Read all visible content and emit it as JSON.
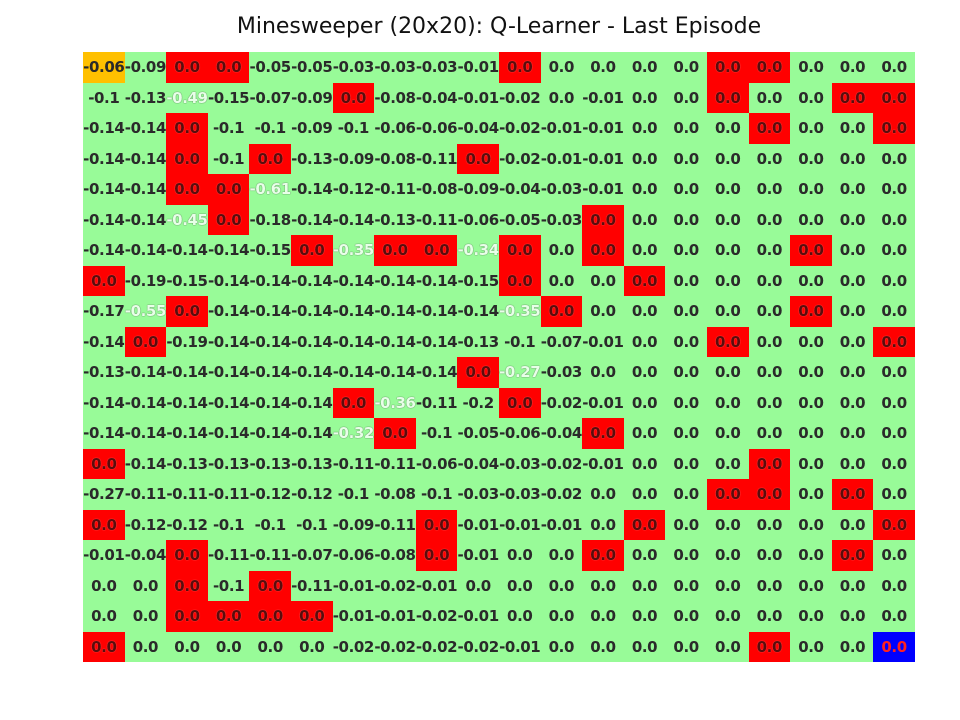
{
  "title": "Minesweeper (20x20): Q-Learner - Last Episode",
  "colors": {
    "safe": "#98fb98",
    "mine": "#ff0000",
    "agent": "#ffc000",
    "goal": "#0000ff"
  },
  "grid": {
    "rows": [
      [
        "-0.06",
        "-0.09",
        "0.0",
        "0.0",
        "-0.05",
        "-0.05",
        "-0.03",
        "-0.03",
        "-0.03",
        "-0.01",
        "0.0",
        "0.0",
        "0.0",
        "0.0",
        "0.0",
        "0.0",
        "0.0",
        "0.0",
        "0.0",
        "0.0"
      ],
      [
        "-0.1",
        "-0.13",
        "-0.49",
        "-0.15",
        "-0.07",
        "-0.09",
        "0.0",
        "-0.08",
        "-0.04",
        "-0.01",
        "-0.02",
        "0.0",
        "-0.01",
        "0.0",
        "0.0",
        "0.0",
        "0.0",
        "0.0",
        "0.0",
        "0.0"
      ],
      [
        "-0.14",
        "-0.14",
        "0.0",
        "-0.1",
        "-0.1",
        "-0.09",
        "-0.1",
        "-0.06",
        "-0.06",
        "-0.04",
        "-0.02",
        "-0.01",
        "-0.01",
        "0.0",
        "0.0",
        "0.0",
        "0.0",
        "0.0",
        "0.0",
        "0.0"
      ],
      [
        "-0.14",
        "-0.14",
        "0.0",
        "-0.1",
        "0.0",
        "-0.13",
        "-0.09",
        "-0.08",
        "-0.11",
        "0.0",
        "-0.02",
        "-0.01",
        "-0.01",
        "0.0",
        "0.0",
        "0.0",
        "0.0",
        "0.0",
        "0.0",
        "0.0"
      ],
      [
        "-0.14",
        "-0.14",
        "0.0",
        "0.0",
        "-0.61",
        "-0.14",
        "-0.12",
        "-0.11",
        "-0.08",
        "-0.09",
        "-0.04",
        "-0.03",
        "-0.01",
        "0.0",
        "0.0",
        "0.0",
        "0.0",
        "0.0",
        "0.0",
        "0.0"
      ],
      [
        "-0.14",
        "-0.14",
        "-0.45",
        "0.0",
        "-0.18",
        "-0.14",
        "-0.14",
        "-0.13",
        "-0.11",
        "-0.06",
        "-0.05",
        "-0.03",
        "0.0",
        "0.0",
        "0.0",
        "0.0",
        "0.0",
        "0.0",
        "0.0",
        "0.0"
      ],
      [
        "-0.14",
        "-0.14",
        "-0.14",
        "-0.14",
        "-0.15",
        "0.0",
        "-0.35",
        "0.0",
        "0.0",
        "-0.34",
        "0.0",
        "0.0",
        "0.0",
        "0.0",
        "0.0",
        "0.0",
        "0.0",
        "0.0",
        "0.0",
        "0.0"
      ],
      [
        "0.0",
        "-0.19",
        "-0.15",
        "-0.14",
        "-0.14",
        "-0.14",
        "-0.14",
        "-0.14",
        "-0.14",
        "-0.15",
        "0.0",
        "0.0",
        "0.0",
        "0.0",
        "0.0",
        "0.0",
        "0.0",
        "0.0",
        "0.0",
        "0.0"
      ],
      [
        "-0.17",
        "-0.55",
        "0.0",
        "-0.14",
        "-0.14",
        "-0.14",
        "-0.14",
        "-0.14",
        "-0.14",
        "-0.14",
        "-0.35",
        "0.0",
        "0.0",
        "0.0",
        "0.0",
        "0.0",
        "0.0",
        "0.0",
        "0.0",
        "0.0"
      ],
      [
        "-0.14",
        "0.0",
        "-0.19",
        "-0.14",
        "-0.14",
        "-0.14",
        "-0.14",
        "-0.14",
        "-0.14",
        "-0.13",
        "-0.1",
        "-0.07",
        "-0.01",
        "0.0",
        "0.0",
        "0.0",
        "0.0",
        "0.0",
        "0.0",
        "0.0"
      ],
      [
        "-0.13",
        "-0.14",
        "-0.14",
        "-0.14",
        "-0.14",
        "-0.14",
        "-0.14",
        "-0.14",
        "-0.14",
        "0.0",
        "-0.27",
        "-0.03",
        "0.0",
        "0.0",
        "0.0",
        "0.0",
        "0.0",
        "0.0",
        "0.0",
        "0.0"
      ],
      [
        "-0.14",
        "-0.14",
        "-0.14",
        "-0.14",
        "-0.14",
        "-0.14",
        "0.0",
        "-0.36",
        "-0.11",
        "-0.2",
        "0.0",
        "-0.02",
        "-0.01",
        "0.0",
        "0.0",
        "0.0",
        "0.0",
        "0.0",
        "0.0",
        "0.0"
      ],
      [
        "-0.14",
        "-0.14",
        "-0.14",
        "-0.14",
        "-0.14",
        "-0.14",
        "-0.32",
        "0.0",
        "-0.1",
        "-0.05",
        "-0.06",
        "-0.04",
        "0.0",
        "0.0",
        "0.0",
        "0.0",
        "0.0",
        "0.0",
        "0.0",
        "0.0"
      ],
      [
        "0.0",
        "-0.14",
        "-0.13",
        "-0.13",
        "-0.13",
        "-0.13",
        "-0.11",
        "-0.11",
        "-0.06",
        "-0.04",
        "-0.03",
        "-0.02",
        "-0.01",
        "0.0",
        "0.0",
        "0.0",
        "0.0",
        "0.0",
        "0.0",
        "0.0"
      ],
      [
        "-0.27",
        "-0.11",
        "-0.11",
        "-0.11",
        "-0.12",
        "-0.12",
        "-0.1",
        "-0.08",
        "-0.1",
        "-0.03",
        "-0.03",
        "-0.02",
        "0.0",
        "0.0",
        "0.0",
        "0.0",
        "0.0",
        "0.0",
        "0.0",
        "0.0"
      ],
      [
        "0.0",
        "-0.12",
        "-0.12",
        "-0.1",
        "-0.1",
        "-0.1",
        "-0.09",
        "-0.11",
        "0.0",
        "-0.01",
        "-0.01",
        "-0.01",
        "0.0",
        "0.0",
        "0.0",
        "0.0",
        "0.0",
        "0.0",
        "0.0",
        "0.0"
      ],
      [
        "-0.01",
        "-0.04",
        "0.0",
        "-0.11",
        "-0.11",
        "-0.07",
        "-0.06",
        "-0.08",
        "0.0",
        "-0.01",
        "0.0",
        "0.0",
        "0.0",
        "0.0",
        "0.0",
        "0.0",
        "0.0",
        "0.0",
        "0.0",
        "0.0"
      ],
      [
        "0.0",
        "0.0",
        "0.0",
        "-0.1",
        "0.0",
        "-0.11",
        "-0.01",
        "-0.02",
        "-0.01",
        "0.0",
        "0.0",
        "0.0",
        "0.0",
        "0.0",
        "0.0",
        "0.0",
        "0.0",
        "0.0",
        "0.0",
        "0.0"
      ],
      [
        "0.0",
        "0.0",
        "0.0",
        "0.0",
        "0.0",
        "0.0",
        "-0.01",
        "-0.01",
        "-0.02",
        "-0.01",
        "0.0",
        "0.0",
        "0.0",
        "0.0",
        "0.0",
        "0.0",
        "0.0",
        "0.0",
        "0.0",
        "0.0"
      ],
      [
        "0.0",
        "0.0",
        "0.0",
        "0.0",
        "0.0",
        "0.0",
        "-0.02",
        "-0.02",
        "-0.02",
        "-0.02",
        "-0.01",
        "0.0",
        "0.0",
        "0.0",
        "0.0",
        "0.0",
        "0.0",
        "0.0",
        "0.0",
        "0.0"
      ]
    ],
    "mines": [
      [
        0,
        2
      ],
      [
        0,
        3
      ],
      [
        0,
        10
      ],
      [
        0,
        15
      ],
      [
        0,
        16
      ],
      [
        1,
        6
      ],
      [
        1,
        15
      ],
      [
        1,
        18
      ],
      [
        1,
        19
      ],
      [
        2,
        2
      ],
      [
        2,
        16
      ],
      [
        2,
        19
      ],
      [
        3,
        2
      ],
      [
        3,
        4
      ],
      [
        3,
        9
      ],
      [
        4,
        2
      ],
      [
        4,
        3
      ],
      [
        5,
        3
      ],
      [
        5,
        12
      ],
      [
        6,
        5
      ],
      [
        6,
        7
      ],
      [
        6,
        8
      ],
      [
        6,
        10
      ],
      [
        6,
        12
      ],
      [
        6,
        17
      ],
      [
        7,
        0
      ],
      [
        7,
        10
      ],
      [
        7,
        13
      ],
      [
        8,
        2
      ],
      [
        8,
        11
      ],
      [
        8,
        17
      ],
      [
        9,
        1
      ],
      [
        9,
        15
      ],
      [
        9,
        19
      ],
      [
        10,
        9
      ],
      [
        11,
        6
      ],
      [
        11,
        10
      ],
      [
        12,
        7
      ],
      [
        12,
        12
      ],
      [
        13,
        0
      ],
      [
        13,
        16
      ],
      [
        14,
        15
      ],
      [
        14,
        16
      ],
      [
        14,
        18
      ],
      [
        15,
        0
      ],
      [
        15,
        8
      ],
      [
        15,
        13
      ],
      [
        15,
        19
      ],
      [
        16,
        2
      ],
      [
        16,
        8
      ],
      [
        16,
        12
      ],
      [
        16,
        18
      ],
      [
        17,
        2
      ],
      [
        17,
        4
      ],
      [
        18,
        2
      ],
      [
        18,
        3
      ],
      [
        18,
        4
      ],
      [
        18,
        5
      ],
      [
        19,
        0
      ],
      [
        19,
        16
      ]
    ],
    "pale_cells": [
      [
        1,
        2
      ],
      [
        4,
        4
      ],
      [
        5,
        2
      ],
      [
        8,
        1
      ],
      [
        6,
        6
      ],
      [
        6,
        9
      ],
      [
        10,
        10
      ],
      [
        11,
        7
      ],
      [
        12,
        6
      ],
      [
        8,
        10
      ]
    ],
    "agent": [
      0,
      0
    ],
    "goal": [
      19,
      19
    ]
  }
}
